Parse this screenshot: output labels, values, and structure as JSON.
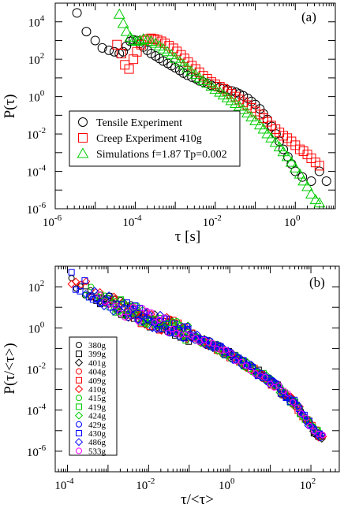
{
  "chart_data": [
    {
      "type": "scatter",
      "panel_label": "(a)",
      "xlabel": "τ [s]",
      "ylabel": "P(τ)",
      "xscale": "log",
      "yscale": "log",
      "xlim": [
        1e-06,
        10
      ],
      "ylim": [
        1e-06,
        100000.0
      ],
      "x_ticks": [
        {
          "value": 1e-06,
          "label": "10",
          "exp": "-6"
        },
        {
          "value": 0.0001,
          "label": "10",
          "exp": "-4"
        },
        {
          "value": 0.01,
          "label": "10",
          "exp": "-2"
        },
        {
          "value": 1,
          "label": "10",
          "exp": "0"
        }
      ],
      "y_ticks": [
        {
          "value": 1e-06,
          "label": "10",
          "exp": "-6"
        },
        {
          "value": 0.0001,
          "label": "10",
          "exp": "-4"
        },
        {
          "value": 0.01,
          "label": "10",
          "exp": "-2"
        },
        {
          "value": 1,
          "label": "10",
          "exp": "0"
        },
        {
          "value": 100,
          "label": "10",
          "exp": "2"
        },
        {
          "value": 10000.0,
          "label": "10",
          "exp": "4"
        }
      ],
      "legend": "center-left",
      "series": [
        {
          "name": "Tensile Experiment",
          "marker": "circle",
          "color": "#000000",
          "points": [
            [
              3.5e-06,
              30000
            ],
            [
              6e-06,
              3000
            ],
            [
              1e-05,
              1000
            ],
            [
              1.5e-05,
              400
            ],
            [
              2.2e-05,
              300
            ],
            [
              3e-05,
              250
            ],
            [
              4e-05,
              200
            ],
            [
              5e-05,
              250
            ],
            [
              6e-05,
              500
            ],
            [
              7.5e-05,
              900
            ],
            [
              9e-05,
              1100
            ],
            [
              0.00011,
              1000
            ],
            [
              0.00013,
              700
            ],
            [
              0.00016,
              450
            ],
            [
              0.0002,
              300
            ],
            [
              0.00025,
              200
            ],
            [
              0.00032,
              150
            ],
            [
              0.0004,
              110
            ],
            [
              0.0005,
              80
            ],
            [
              0.00065,
              60
            ],
            [
              0.0008,
              45
            ],
            [
              0.001,
              35
            ],
            [
              0.0013,
              25
            ],
            [
              0.0016,
              18
            ],
            [
              0.002,
              14
            ],
            [
              0.0026,
              11
            ],
            [
              0.0033,
              9
            ],
            [
              0.004,
              7
            ],
            [
              0.005,
              6
            ],
            [
              0.0065,
              5
            ],
            [
              0.008,
              4
            ],
            [
              0.01,
              3.5
            ],
            [
              0.013,
              3
            ],
            [
              0.016,
              2.7
            ],
            [
              0.02,
              2.3
            ],
            [
              0.026,
              2
            ],
            [
              0.033,
              1.7
            ],
            [
              0.04,
              1.4
            ],
            [
              0.05,
              1.1
            ],
            [
              0.065,
              0.8
            ],
            [
              0.08,
              0.55
            ],
            [
              0.1,
              0.38
            ],
            [
              0.13,
              0.22
            ],
            [
              0.16,
              0.12
            ],
            [
              0.2,
              0.06
            ],
            [
              0.26,
              0.025
            ],
            [
              0.33,
              0.01
            ],
            [
              0.4,
              0.004
            ],
            [
              0.5,
              0.0015
            ],
            [
              0.65,
              0.0006
            ],
            [
              0.8,
              0.00025
            ],
            [
              1.0,
              0.0001
            ],
            [
              1.5,
              5e-05
            ],
            [
              2.5,
              3e-05
            ],
            [
              4.0,
              0.0001
            ],
            [
              6.0,
              3e-05
            ]
          ]
        },
        {
          "name": "Creep Experiment 410g",
          "marker": "square",
          "color": "#ff0000",
          "points": [
            [
              3.5e-05,
              600
            ],
            [
              4.5e-05,
              200
            ],
            [
              5.5e-05,
              50
            ],
            [
              7e-05,
              30
            ],
            [
              9e-05,
              100
            ],
            [
              0.00011,
              250
            ],
            [
              0.00014,
              600
            ],
            [
              0.00017,
              1000
            ],
            [
              0.0002,
              1200
            ],
            [
              0.00025,
              1300
            ],
            [
              0.0003,
              1200
            ],
            [
              0.00036,
              1100
            ],
            [
              0.00045,
              900
            ],
            [
              0.00055,
              700
            ],
            [
              0.0007,
              520
            ],
            [
              0.0009,
              380
            ],
            [
              0.0011,
              260
            ],
            [
              0.0014,
              170
            ],
            [
              0.0017,
              110
            ],
            [
              0.0021,
              70
            ],
            [
              0.0026,
              45
            ],
            [
              0.0032,
              30
            ],
            [
              0.004,
              20
            ],
            [
              0.005,
              13
            ],
            [
              0.0063,
              9
            ],
            [
              0.008,
              6
            ],
            [
              0.01,
              4.5
            ],
            [
              0.013,
              3.4
            ],
            [
              0.016,
              2.6
            ],
            [
              0.02,
              1.9
            ],
            [
              0.025,
              1.4
            ],
            [
              0.032,
              1.0
            ],
            [
              0.04,
              0.7
            ],
            [
              0.05,
              0.5
            ],
            [
              0.063,
              0.35
            ],
            [
              0.08,
              0.25
            ],
            [
              0.1,
              0.16
            ],
            [
              0.13,
              0.11
            ],
            [
              0.16,
              0.07
            ],
            [
              0.2,
              0.045
            ],
            [
              0.25,
              0.028
            ],
            [
              0.32,
              0.018
            ],
            [
              0.4,
              0.012
            ],
            [
              0.5,
              0.008
            ],
            [
              0.63,
              0.006
            ],
            [
              0.8,
              0.004
            ],
            [
              1.0,
              0.0025
            ],
            [
              1.3,
              0.0015
            ],
            [
              1.6,
              0.0012
            ],
            [
              2.0,
              0.0008
            ],
            [
              2.5,
              0.0005
            ],
            [
              3.2,
              0.0003
            ],
            [
              4.0,
              0.0002
            ]
          ]
        },
        {
          "name": "Simulations f=1.87 Tp=0.002",
          "marker": "triangle",
          "color": "#00cc00",
          "points": [
            [
              4e-05,
              25000
            ],
            [
              5e-05,
              8000
            ],
            [
              6e-05,
              3000
            ],
            [
              7.5e-05,
              1500
            ],
            [
              9e-05,
              1000
            ],
            [
              0.00011,
              900
            ],
            [
              0.00013,
              1000
            ],
            [
              0.00016,
              1200
            ],
            [
              0.0002,
              1100
            ],
            [
              0.00025,
              900
            ],
            [
              0.00032,
              700
            ],
            [
              0.0004,
              500
            ],
            [
              0.0005,
              350
            ],
            [
              0.00063,
              250
            ],
            [
              0.0008,
              170
            ],
            [
              0.001,
              110
            ],
            [
              0.0013,
              75
            ],
            [
              0.0016,
              50
            ],
            [
              0.002,
              33
            ],
            [
              0.0025,
              22
            ],
            [
              0.0032,
              15
            ],
            [
              0.004,
              10
            ],
            [
              0.005,
              7
            ],
            [
              0.0063,
              5
            ],
            [
              0.008,
              3.5
            ],
            [
              0.01,
              2.4
            ],
            [
              0.013,
              1.7
            ],
            [
              0.016,
              1.2
            ],
            [
              0.02,
              0.85
            ],
            [
              0.025,
              0.6
            ],
            [
              0.032,
              0.42
            ],
            [
              0.04,
              0.3
            ],
            [
              0.05,
              0.2
            ],
            [
              0.063,
              0.13
            ],
            [
              0.08,
              0.08
            ],
            [
              0.1,
              0.05
            ],
            [
              0.13,
              0.03
            ],
            [
              0.16,
              0.018
            ],
            [
              0.2,
              0.01
            ],
            [
              0.25,
              0.006
            ],
            [
              0.32,
              0.0035
            ],
            [
              0.4,
              0.002
            ],
            [
              0.5,
              0.0011
            ],
            [
              0.63,
              0.0006
            ],
            [
              0.8,
              0.0003
            ],
            [
              1.0,
              0.00015
            ],
            [
              1.3,
              7e-05
            ],
            [
              1.6,
              3e-05
            ],
            [
              2.0,
              1.5e-05
            ],
            [
              2.5,
              6e-06
            ],
            [
              3.2,
              3e-06
            ],
            [
              4.0,
              2e-06
            ]
          ]
        }
      ]
    },
    {
      "type": "scatter",
      "panel_label": "(b)",
      "xlabel": "τ/<τ>",
      "ylabel": "P(τ/<τ>)",
      "xscale": "log",
      "yscale": "log",
      "xlim": [
        5e-05,
        500
      ],
      "ylim": [
        1e-07,
        1000
      ],
      "x_ticks": [
        {
          "value": 0.0001,
          "label": "10",
          "exp": "-4"
        },
        {
          "value": 0.01,
          "label": "10",
          "exp": "-2"
        },
        {
          "value": 1,
          "label": "10",
          "exp": "0"
        },
        {
          "value": 100,
          "label": "10",
          "exp": "2"
        }
      ],
      "y_ticks": [
        {
          "value": 1e-06,
          "label": "10",
          "exp": "-6"
        },
        {
          "value": 0.0001,
          "label": "10",
          "exp": "-4"
        },
        {
          "value": 0.01,
          "label": "10",
          "exp": "-2"
        },
        {
          "value": 1,
          "label": "10",
          "exp": "0"
        },
        {
          "value": 100,
          "label": "10",
          "exp": "2"
        }
      ],
      "legend": "lower-left",
      "master_curve": [
        [
          0.0001,
          400
        ],
        [
          0.0002,
          120
        ],
        [
          0.0005,
          40
        ],
        [
          0.001,
          20
        ],
        [
          0.003,
          7
        ],
        [
          0.01,
          2.8
        ],
        [
          0.03,
          1.3
        ],
        [
          0.1,
          0.5
        ],
        [
          0.3,
          0.18
        ],
        [
          1,
          0.05
        ],
        [
          3,
          0.013
        ],
        [
          10,
          0.0025
        ],
        [
          20,
          0.0008
        ],
        [
          40,
          0.0002
        ],
        [
          70,
          5e-05
        ],
        [
          100,
          1.5e-05
        ],
        [
          200,
          4e-06
        ]
      ],
      "series": [
        {
          "name": "380g",
          "marker": "circle",
          "color": "#000000"
        },
        {
          "name": "399g",
          "marker": "square",
          "color": "#000000"
        },
        {
          "name": "401g",
          "marker": "diamond",
          "color": "#000000"
        },
        {
          "name": "404g",
          "marker": "circle",
          "color": "#ff0000"
        },
        {
          "name": "409g",
          "marker": "square",
          "color": "#ff0000"
        },
        {
          "name": "410g",
          "marker": "diamond",
          "color": "#ff0000"
        },
        {
          "name": "415g",
          "marker": "circle",
          "color": "#00cc00"
        },
        {
          "name": "419g",
          "marker": "square",
          "color": "#00cc00"
        },
        {
          "name": "424g",
          "marker": "diamond",
          "color": "#00cc00"
        },
        {
          "name": "429g",
          "marker": "circle",
          "color": "#0000ff"
        },
        {
          "name": "430g",
          "marker": "square",
          "color": "#0000ff"
        },
        {
          "name": "486g",
          "marker": "diamond",
          "color": "#0000ff"
        },
        {
          "name": "533g",
          "marker": "circle",
          "color": "#ff00ff"
        }
      ]
    }
  ]
}
